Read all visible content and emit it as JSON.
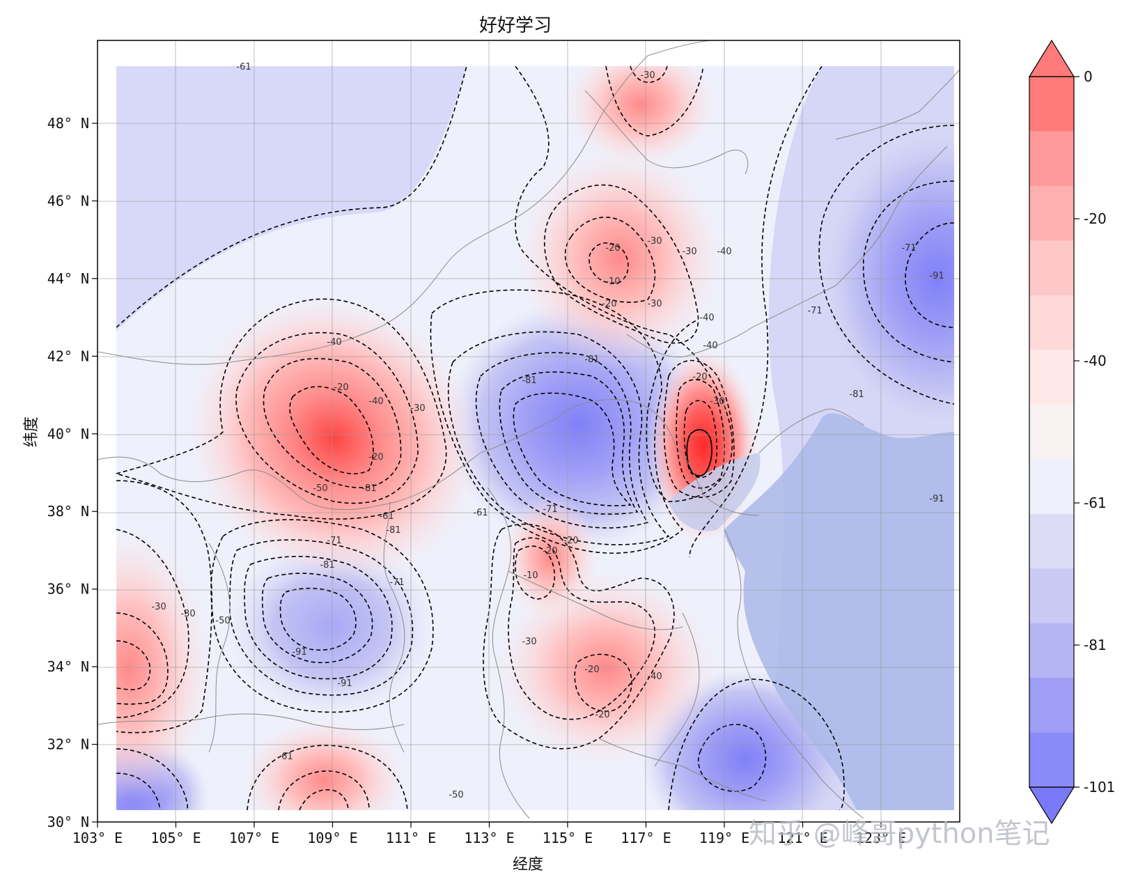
{
  "title": "好好学习",
  "xlabel": "经度",
  "ylabel": "纬度",
  "watermark": "知乎 @峰哥python笔记",
  "map": {
    "x_ticks": [
      "103° E",
      "105° E",
      "107° E",
      "109° E",
      "111° E",
      "113° E",
      "115° E",
      "117° E",
      "119° E",
      "121° E",
      "123° E"
    ],
    "y_ticks": [
      "30° N",
      "32° N",
      "34° N",
      "36° N",
      "38° N",
      "40° N",
      "42° N",
      "44° N",
      "46° N",
      "48° N"
    ],
    "lon_range": [
      103,
      125
    ],
    "lat_range": [
      30,
      50
    ],
    "gridlines": true,
    "ocean_color": "#aab8e8"
  },
  "colorbar": {
    "tick_labels": [
      "0",
      "-20",
      "-40",
      "-61",
      "-81",
      "-101"
    ],
    "bands": [
      "#ff7a7a",
      "#ff9a9a",
      "#ffb0b0",
      "#ffc8c8",
      "#ffd8d8",
      "#ffe8e8",
      "#f7f1f1",
      "#eef0fb",
      "#dcdcf6",
      "#c9c9f4",
      "#b5b5f4",
      "#9e9ef6",
      "#8a8af8"
    ],
    "extend": "both"
  },
  "contour_labels": [
    "-61",
    "-30",
    "-30",
    "-30",
    "-20",
    "-10",
    "-40",
    "-20",
    "-40",
    "-40",
    "-20",
    "-30",
    "-40",
    "-20",
    "-40",
    "-30",
    "-20",
    "-81",
    "-81",
    "-81",
    "-71",
    "-61",
    "-71",
    "-81",
    "-91",
    "-91",
    "-61",
    "-50",
    "-50",
    "-30",
    "-30",
    "-20",
    "-20",
    "-10",
    "-61",
    "-71",
    "-81",
    "-30",
    "-20",
    "-40",
    "-20",
    "-30",
    "-81",
    "-71",
    "-71",
    "-50",
    "-91",
    "-91"
  ],
  "chart_data": {
    "type": "heatmap",
    "title": "好好学习",
    "xlabel": "经度",
    "ylabel": "纬度",
    "x_range": [
      103,
      125
    ],
    "y_range": [
      30,
      50
    ],
    "colorbar_ticks": [
      0,
      -20,
      -40,
      -61,
      -81,
      -101
    ],
    "features": [
      {
        "kind": "max",
        "lon": 109.3,
        "lat": 39.4,
        "value": -5
      },
      {
        "kind": "max",
        "lon": 118.4,
        "lat": 39.4,
        "value": 0
      },
      {
        "kind": "max",
        "lon": 116.3,
        "lat": 44.4,
        "value": -10
      },
      {
        "kind": "max",
        "lon": 103.7,
        "lat": 33.8,
        "value": -5
      },
      {
        "kind": "max",
        "lon": 114.6,
        "lat": 36.8,
        "value": -20
      },
      {
        "kind": "max",
        "lon": 116.3,
        "lat": 33.2,
        "value": -15
      },
      {
        "kind": "max",
        "lon": 108.3,
        "lat": 30.9,
        "value": -20
      },
      {
        "kind": "max",
        "lon": 116.3,
        "lat": 48.3,
        "value": -30
      },
      {
        "kind": "min",
        "lon": 115.0,
        "lat": 40.0,
        "value": -81
      },
      {
        "kind": "min",
        "lon": 109.5,
        "lat": 35.2,
        "value": -91
      },
      {
        "kind": "min",
        "lon": 124.5,
        "lat": 44.0,
        "value": -101
      },
      {
        "kind": "min",
        "lon": 120.0,
        "lat": 31.7,
        "value": -95
      },
      {
        "kind": "min",
        "lon": 104.0,
        "lat": 30.8,
        "value": -91
      }
    ]
  }
}
